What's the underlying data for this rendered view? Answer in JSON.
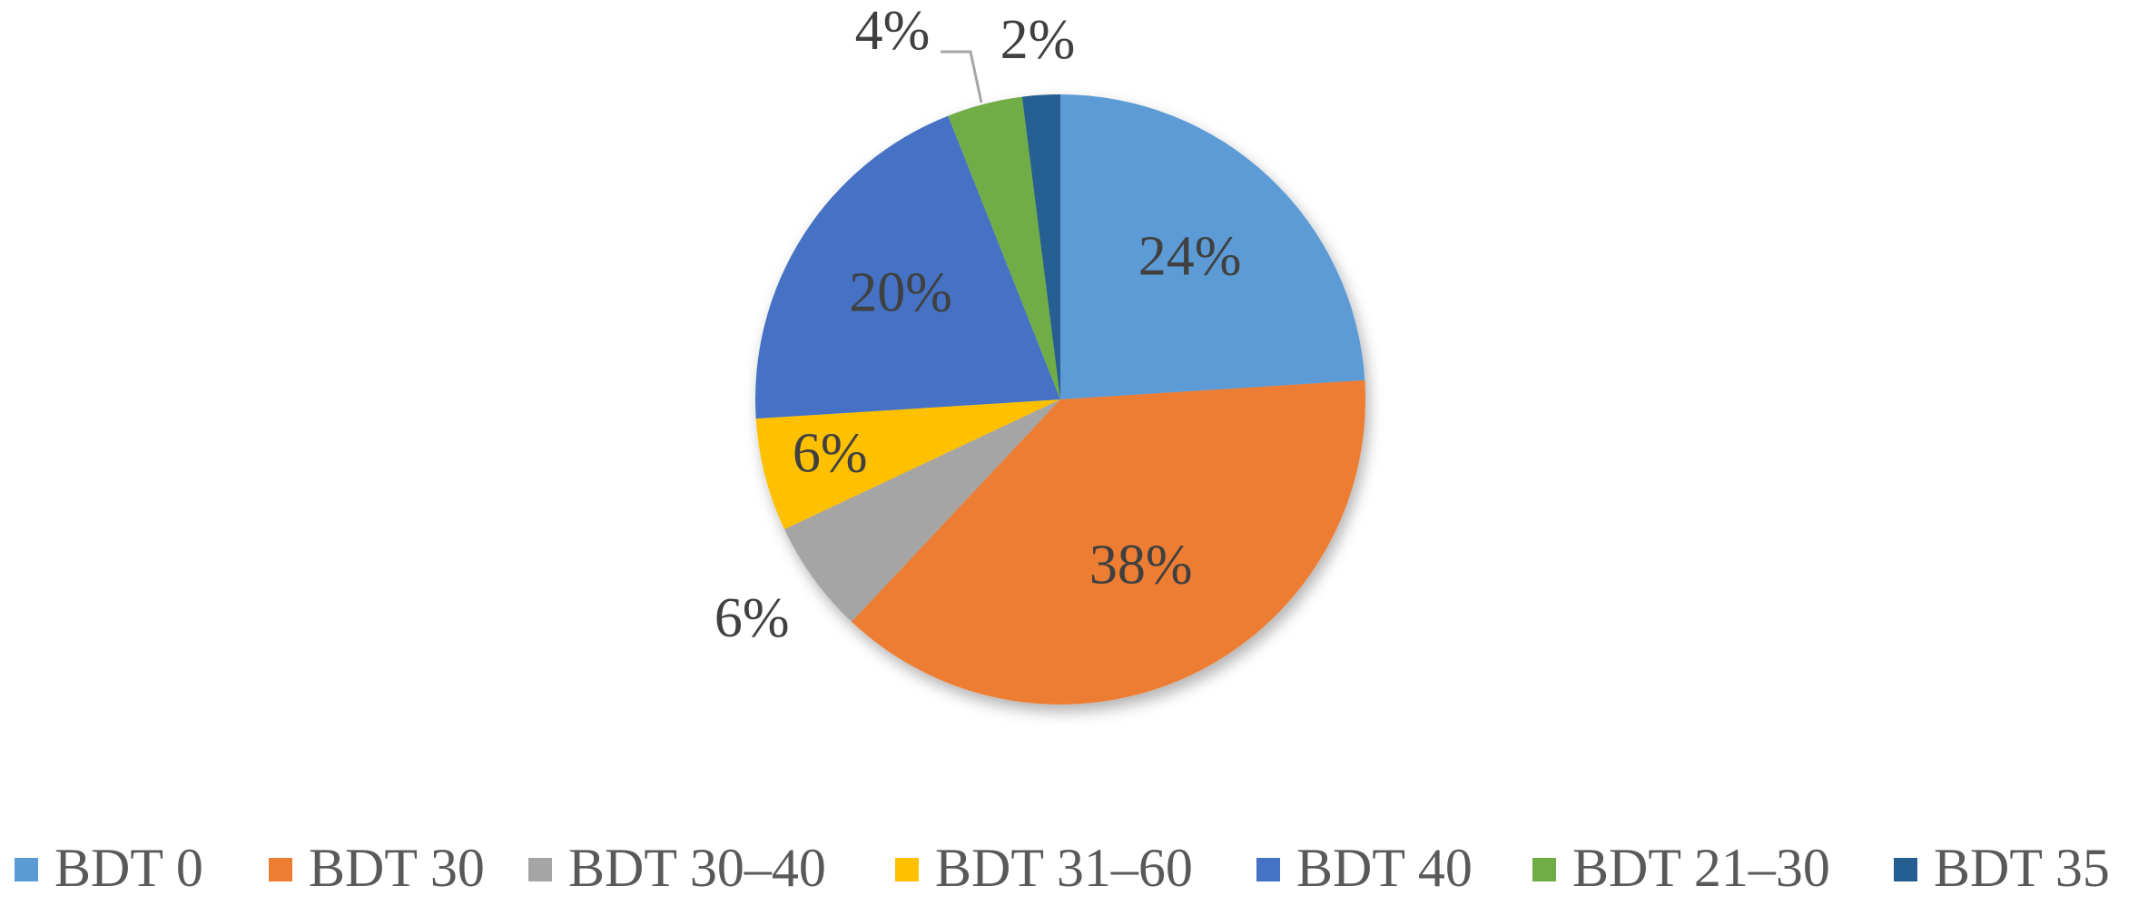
{
  "chart_data": {
    "type": "pie",
    "categories": [
      "BDT 0",
      "BDT 30",
      "BDT 30–40",
      "BDT 31–60",
      "BDT 40",
      "BDT 21–30",
      "BDT 35"
    ],
    "values": [
      24,
      38,
      6,
      6,
      20,
      4,
      2
    ],
    "value_labels": [
      "24%",
      "38%",
      "6%",
      "6%",
      "20%",
      "4%",
      "2%"
    ],
    "colors": [
      "#5b9bd5",
      "#ed7d31",
      "#a5a5a5",
      "#ffc000",
      "#4472c4",
      "#70ad47",
      "#255e91"
    ],
    "legend": "bottom"
  }
}
